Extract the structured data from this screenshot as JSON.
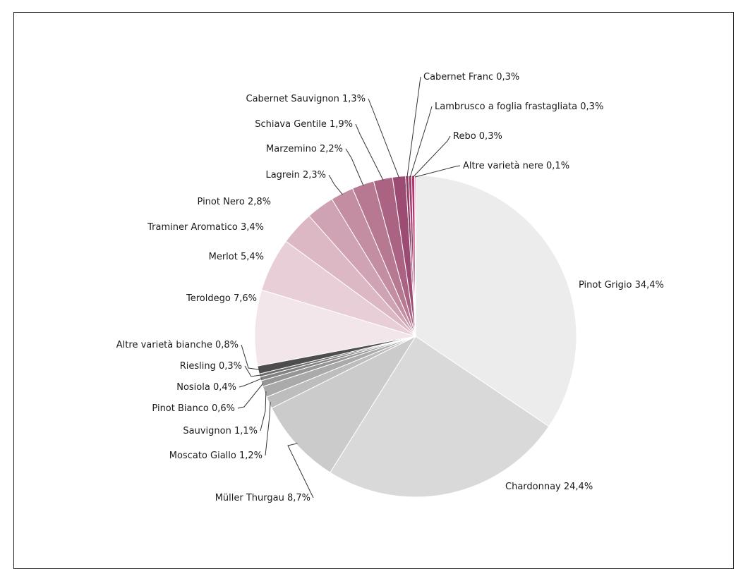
{
  "chart_data": {
    "type": "pie",
    "title": "",
    "label_format": "{name} {value}%",
    "slices": [
      {
        "name": "Pinot Grigio",
        "value_text": "34,4",
        "value": 34.4,
        "color": "#ececec"
      },
      {
        "name": "Chardonnay",
        "value_text": "24,4",
        "value": 24.4,
        "color": "#d9d9d9"
      },
      {
        "name": "Müller Thurgau",
        "value_text": "8,7",
        "value": 8.7,
        "color": "#cbcbcb"
      },
      {
        "name": "Moscato Giallo",
        "value_text": "1,2",
        "value": 1.2,
        "color": "#bdbdbd"
      },
      {
        "name": "Sauvignon",
        "value_text": "1,1",
        "value": 1.1,
        "color": "#aaaaaa"
      },
      {
        "name": "Pinot Bianco",
        "value_text": "0,6",
        "value": 0.6,
        "color": "#969696"
      },
      {
        "name": "Nosiola",
        "value_text": "0,4",
        "value": 0.4,
        "color": "#828282"
      },
      {
        "name": "Riesling",
        "value_text": "0,3",
        "value": 0.3,
        "color": "#6c6c6c"
      },
      {
        "name": "Altre varietà bianche",
        "value_text": "0,8",
        "value": 0.8,
        "color": "#4d4d4d"
      },
      {
        "name": "Teroldego",
        "value_text": "7,6",
        "value": 7.6,
        "color": "#f3e6ea"
      },
      {
        "name": "Merlot",
        "value_text": "5,4",
        "value": 5.4,
        "color": "#e8cfd7"
      },
      {
        "name": "Traminer Aromatico",
        "value_text": "3,4",
        "value": 3.4,
        "color": "#dbb8c4"
      },
      {
        "name": "Pinot Nero",
        "value_text": "2,8",
        "value": 2.8,
        "color": "#cfa3b3"
      },
      {
        "name": "Lagrein",
        "value_text": "2,3",
        "value": 2.3,
        "color": "#c38ea2"
      },
      {
        "name": "Marzemino",
        "value_text": "2,2",
        "value": 2.2,
        "color": "#b77991"
      },
      {
        "name": "Schiava Gentile",
        "value_text": "1,9",
        "value": 1.9,
        "color": "#aa6382"
      },
      {
        "name": "Cabernet Sauvignon",
        "value_text": "1,3",
        "value": 1.3,
        "color": "#9c4c72"
      },
      {
        "name": "Cabernet Franc",
        "value_text": "0,3",
        "value": 0.3,
        "color": "#8e3864"
      },
      {
        "name": "Lambrusco a foglia frastagliata",
        "value_text": "0,3",
        "value": 0.3,
        "color": "#a33a6a"
      },
      {
        "name": "Rebo",
        "value_text": "0,3",
        "value": 0.3,
        "color": "#b4386f"
      },
      {
        "name": "Altre varietà nere",
        "value_text": "0,1",
        "value": 0.1,
        "color": "#c8326f"
      }
    ]
  }
}
